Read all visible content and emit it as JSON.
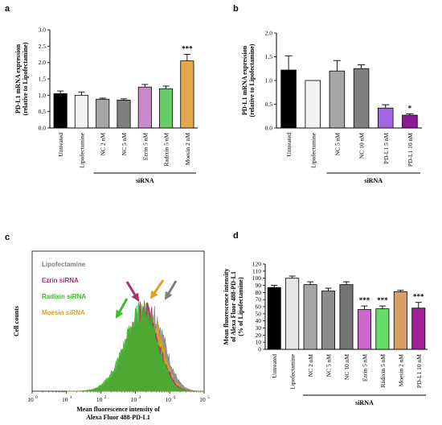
{
  "chart_data": [
    {
      "panel": "a",
      "type": "bar",
      "ylabel_line1": "PD-L1 mRNA expression",
      "ylabel_line2": "(relative to Lipofectamine)",
      "ylim": [
        0,
        3.0
      ],
      "yticks": [
        "0.0",
        "0.5",
        "1.0",
        "1.5",
        "2.0",
        "2.5",
        "3.0"
      ],
      "categories": [
        "Untreated",
        "Lipofectamine",
        "NC 2 nM",
        "NC 5 nM",
        "Ezrin 5 nM",
        "Radixin 5 nM",
        "Moesin 2 nM"
      ],
      "values": [
        1.05,
        1.0,
        0.88,
        0.85,
        1.25,
        1.2,
        2.05
      ],
      "errors": [
        0.08,
        0.1,
        0.03,
        0.04,
        0.08,
        0.08,
        0.2
      ],
      "colors": [
        "#000000",
        "#f2f2f2",
        "#a6a6a6",
        "#7f7f7f",
        "#cc88cc",
        "#66cc66",
        "#e6a64d"
      ],
      "significance": [
        "",
        "",
        "",
        "",
        "",
        "",
        "***"
      ],
      "group_label": "siRNA",
      "group_start": 2,
      "group_end": 6
    },
    {
      "panel": "b",
      "type": "bar",
      "ylabel_line1": "PD-L1 mRNA expression",
      "ylabel_line2": "(relative to Lipofectamine)",
      "ylim": [
        0,
        2.0
      ],
      "yticks": [
        "0.0",
        "0.5",
        "1.0",
        "1.5",
        "2.0"
      ],
      "categories": [
        "Untreated",
        "Lipofectamine",
        "NC 5 nM",
        "NC 10 nM",
        "PD-L1 5 nM",
        "PD-L1 10 nM"
      ],
      "values": [
        1.22,
        1.0,
        1.2,
        1.25,
        0.42,
        0.27
      ],
      "errors": [
        0.3,
        0.0,
        0.22,
        0.08,
        0.07,
        0.03
      ],
      "colors": [
        "#000000",
        "#f2f2f2",
        "#a6a6a6",
        "#7f7f7f",
        "#a366e0",
        "#8a1a9a"
      ],
      "significance": [
        "",
        "",
        "",
        "",
        "",
        "*"
      ],
      "group_label": "siRNA",
      "group_start": 2,
      "group_end": 5
    },
    {
      "panel": "c",
      "type": "area",
      "ylabel": "Cell counts",
      "xlabel_line1": "Mean fluorescence intensity of",
      "xlabel_line2": "Alexa Fluor 488-PD-L1",
      "xscale": "log",
      "xticks": [
        "10",
        "10",
        "10",
        "10",
        "10",
        "10"
      ],
      "xtick_exps": [
        "0",
        "1",
        "2",
        "3",
        "4",
        "5"
      ],
      "series": [
        {
          "name": "Lipofectamine",
          "color": "#7f7f7f",
          "peak_log": 3.45
        },
        {
          "name": "Ezrin siRNA",
          "color": "#a0356e",
          "peak_log": 3.3
        },
        {
          "name": "Radixin siRNA",
          "color": "#3dbb2a",
          "peak_log": 3.25
        },
        {
          "name": "Moesin siRNA",
          "color": "#e0a01e",
          "peak_log": 3.35
        }
      ]
    },
    {
      "panel": "d",
      "type": "bar",
      "ylabel_line1": "Mean fluorescence intensity",
      "ylabel_line2": "of Alexa Fluor 488-PD-L1",
      "ylabel_line3": "(% of Lipofectamine)",
      "ylim": [
        0,
        120
      ],
      "yticks": [
        "0",
        "10",
        "20",
        "30",
        "40",
        "50",
        "60",
        "70",
        "80",
        "90",
        "100",
        "110",
        "120"
      ],
      "categories": [
        "Untreated",
        "Lipofectamine",
        "NC 2 nM",
        "NC 5 nM",
        "NC 10 nM",
        "Ezrin 5 nM",
        "Radixin 5 nM",
        "Moesin 2 nM",
        "PD-L1 10 nM"
      ],
      "values": [
        87,
        100,
        91,
        82,
        91,
        56,
        57,
        81,
        58
      ],
      "errors": [
        3,
        3,
        4,
        4,
        4,
        5,
        4,
        2,
        8
      ],
      "colors": [
        "#000000",
        "#e6e6e6",
        "#a6a6a6",
        "#8c8c8c",
        "#737373",
        "#cc66cc",
        "#66dd66",
        "#d9a066",
        "#a0209a"
      ],
      "significance": [
        "",
        "",
        "",
        "",
        "",
        "***",
        "***",
        "",
        "***"
      ],
      "group_label": "siRNA",
      "group_start": 2,
      "group_end": 8
    }
  ]
}
